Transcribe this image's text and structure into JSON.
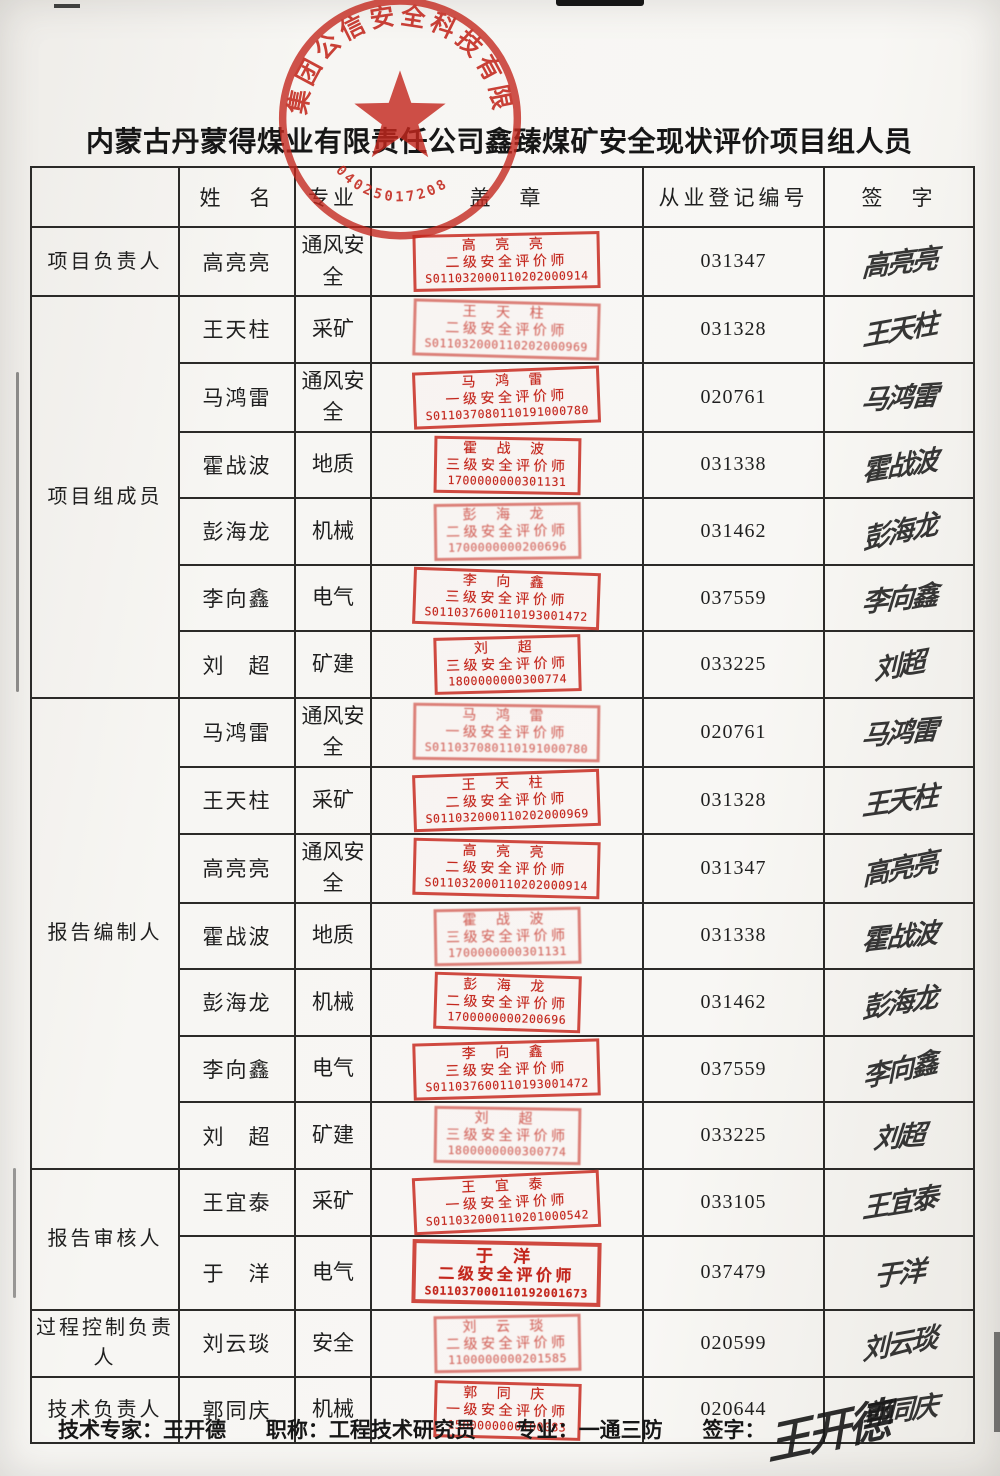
{
  "page": {
    "title": "内蒙古丹蒙得煤业有限责任公司鑫臻煤矿安全现状评价项目组人员"
  },
  "seal": {
    "arc_text": "集团公信安全科技有限公司",
    "arc_number": "04025017208"
  },
  "table": {
    "headers": {
      "role": "",
      "name": "姓　名",
      "specialty": "专业",
      "stamp": "盖　章",
      "reg_no": "从业登记编号",
      "signature": "签　字"
    },
    "sections": [
      {
        "role": "项目负责人",
        "rows": [
          {
            "name": "高亮亮",
            "specialty": "通风安全",
            "stamp_name": "高 亮 亮",
            "stamp_level": "二级安全评价师",
            "stamp_no": "S011032000110202000914",
            "reg_no": "031347",
            "signature": "高亮亮"
          }
        ]
      },
      {
        "role": "项目组成员",
        "rows": [
          {
            "name": "王天柱",
            "specialty": "采矿",
            "stamp_name": "王 天 柱",
            "stamp_level": "二级安全评价师",
            "stamp_no": "S011032000110202000969",
            "reg_no": "031328",
            "signature": "王天柱"
          },
          {
            "name": "马鸿雷",
            "specialty": "通风安全",
            "stamp_name": "马 鸿 雷",
            "stamp_level": "一级安全评价师",
            "stamp_no": "S011037080110191000780",
            "reg_no": "020761",
            "signature": "马鸿雷"
          },
          {
            "name": "霍战波",
            "specialty": "地质",
            "stamp_name": "霍 战 波",
            "stamp_level": "三级安全评价师",
            "stamp_no": "1700000000301131",
            "reg_no": "031338",
            "signature": "霍战波"
          },
          {
            "name": "彭海龙",
            "specialty": "机械",
            "stamp_name": "彭 海 龙",
            "stamp_level": "二级安全评价师",
            "stamp_no": "1700000000200696",
            "reg_no": "031462",
            "signature": "彭海龙"
          },
          {
            "name": "李向鑫",
            "specialty": "电气",
            "stamp_name": "李 向 鑫",
            "stamp_level": "三级安全评价师",
            "stamp_no": "S011037600110193001472",
            "reg_no": "037559",
            "signature": "李向鑫"
          },
          {
            "name": "刘　超",
            "specialty": "矿建",
            "stamp_name": "刘　超",
            "stamp_level": "三级安全评价师",
            "stamp_no": "1800000000300774",
            "reg_no": "033225",
            "signature": "刘超"
          }
        ]
      },
      {
        "role": "报告编制人",
        "rows": [
          {
            "name": "马鸿雷",
            "specialty": "通风安全",
            "stamp_name": "马 鸿 雷",
            "stamp_level": "一级安全评价师",
            "stamp_no": "S011037080110191000780",
            "reg_no": "020761",
            "signature": "马鸿雷"
          },
          {
            "name": "王天柱",
            "specialty": "采矿",
            "stamp_name": "王 天 柱",
            "stamp_level": "二级安全评价师",
            "stamp_no": "S011032000110202000969",
            "reg_no": "031328",
            "signature": "王天柱"
          },
          {
            "name": "高亮亮",
            "specialty": "通风安全",
            "stamp_name": "高 亮 亮",
            "stamp_level": "二级安全评价师",
            "stamp_no": "S011032000110202000914",
            "reg_no": "031347",
            "signature": "高亮亮"
          },
          {
            "name": "霍战波",
            "specialty": "地质",
            "stamp_name": "霍 战 波",
            "stamp_level": "三级安全评价师",
            "stamp_no": "1700000000301131",
            "reg_no": "031338",
            "signature": "霍战波"
          },
          {
            "name": "彭海龙",
            "specialty": "机械",
            "stamp_name": "彭 海 龙",
            "stamp_level": "二级安全评价师",
            "stamp_no": "1700000000200696",
            "reg_no": "031462",
            "signature": "彭海龙"
          },
          {
            "name": "李向鑫",
            "specialty": "电气",
            "stamp_name": "李 向 鑫",
            "stamp_level": "三级安全评价师",
            "stamp_no": "S011037600110193001472",
            "reg_no": "037559",
            "signature": "李向鑫"
          },
          {
            "name": "刘　超",
            "specialty": "矿建",
            "stamp_name": "刘　超",
            "stamp_level": "三级安全评价师",
            "stamp_no": "1800000000300774",
            "reg_no": "033225",
            "signature": "刘超"
          }
        ]
      },
      {
        "role": "报告审核人",
        "rows": [
          {
            "name": "王宜泰",
            "specialty": "采矿",
            "stamp_name": "王 宜 泰",
            "stamp_level": "一级安全评价师",
            "stamp_no": "S011032000110201000542",
            "reg_no": "033105",
            "signature": "王宜泰"
          },
          {
            "name": "于　洋",
            "specialty": "电气",
            "stamp_name": "于 洋",
            "stamp_level": "二级安全评价师",
            "stamp_no": "S011037000110192001673",
            "reg_no": "037479",
            "signature": "于洋"
          }
        ]
      },
      {
        "role": "过程控制负责人",
        "rows": [
          {
            "name": "刘云琰",
            "specialty": "安全",
            "stamp_name": "刘 云 琰",
            "stamp_level": "二级安全评价师",
            "stamp_no": "1100000000201585",
            "reg_no": "020599",
            "signature": "刘云琰"
          }
        ]
      },
      {
        "role": "技术负责人",
        "rows": [
          {
            "name": "郭同庆",
            "specialty": "机械",
            "stamp_name": "郭 同 庆",
            "stamp_level": "一级安全评价师",
            "stamp_no": "1500000000100083",
            "reg_no": "020644",
            "signature": "郭同庆"
          }
        ]
      }
    ]
  },
  "footer": {
    "expert_label": "技术专家：",
    "expert_name": "王开德",
    "job_label": "职称：",
    "job_value": "工程技术研究员",
    "major_label": "专业：",
    "major_value": "一通三防",
    "sign_label": "签字：",
    "sign_value": "王开德"
  },
  "colors": {
    "stamp_red": "#c3271d",
    "ink": "#1f1f1f"
  }
}
